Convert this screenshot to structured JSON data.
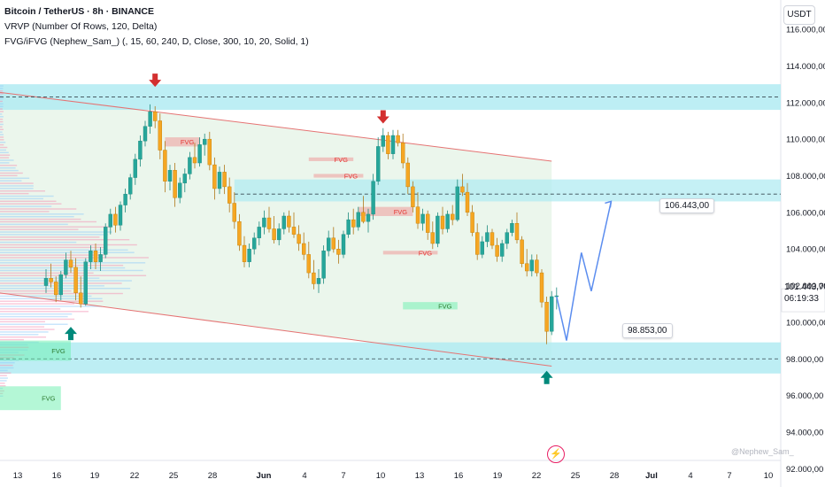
{
  "header": {
    "title": "Bitcoin / TetherUS · 8h · BINANCE",
    "indicator1": "VRVP (Number Of Rows, 120, Delta)",
    "indicator2": "FVG/iFVG (Nephew_Sam_) (, 15, 60, 240, D, Close, 300, 10, 20, Solid, 1)"
  },
  "currency_label": "USDT",
  "current_price": {
    "value": "101.443,70",
    "countdown": "06:19:33"
  },
  "watermark": "@Nephew_Sam_",
  "event_icon": "lightning-bolt-icon",
  "annotations": {
    "target_label": "106.443,00",
    "low_label": "98.853,00",
    "fvg_label": "FVG"
  },
  "colors": {
    "bull": "#26a69a",
    "bear": "#f5a623",
    "channel_line": "#e57373",
    "channel_fill": "#e8f5e9",
    "zone_cyan": "#b2ebf2",
    "arrow_down": "#d32f2f",
    "arrow_up": "#00897b",
    "projection": "#5b8def"
  },
  "chart_data": {
    "type": "candlestick",
    "symbol": "Bitcoin / TetherUS",
    "interval": "8h",
    "exchange": "BINANCE",
    "x_ticks": [
      "13",
      "16",
      "19",
      "22",
      "25",
      "28",
      "Jun",
      "4",
      "7",
      "10",
      "13",
      "16",
      "19",
      "22",
      "25",
      "28",
      "Jul",
      "4",
      "7",
      "10"
    ],
    "y_ticks": [
      "92.000,00",
      "94.000,00",
      "96.000,00",
      "98.000,00",
      "100.000,00",
      "102.000,00",
      "104.000,00",
      "106.000,00",
      "108.000,00",
      "110.000,00",
      "112.000,00",
      "114.000,00",
      "116.000,00"
    ],
    "ylim": [
      91000,
      117600
    ],
    "candles": [
      [
        102000,
        102900,
        101600,
        102400
      ],
      [
        102400,
        103200,
        101900,
        102200
      ],
      [
        102200,
        102500,
        101100,
        101500
      ],
      [
        101500,
        102800,
        101200,
        102600
      ],
      [
        102600,
        103800,
        102400,
        103400
      ],
      [
        103400,
        103900,
        102700,
        103000
      ],
      [
        103000,
        103500,
        101200,
        101600
      ],
      [
        101600,
        102500,
        100800,
        101000
      ],
      [
        101000,
        103500,
        100900,
        103300
      ],
      [
        103300,
        104200,
        102900,
        103900
      ],
      [
        103900,
        104300,
        102900,
        103300
      ],
      [
        103300,
        104100,
        102800,
        103700
      ],
      [
        103700,
        105400,
        103500,
        105200
      ],
      [
        105200,
        106200,
        104800,
        105900
      ],
      [
        105900,
        106300,
        104900,
        105300
      ],
      [
        105300,
        106600,
        105000,
        106400
      ],
      [
        106400,
        107300,
        106000,
        107000
      ],
      [
        107000,
        108100,
        106700,
        107900
      ],
      [
        107900,
        109200,
        107500,
        108900
      ],
      [
        108900,
        110200,
        108500,
        109900
      ],
      [
        109900,
        111000,
        109600,
        110700
      ],
      [
        110700,
        111900,
        110300,
        111500
      ],
      [
        111500,
        111800,
        110600,
        111000
      ],
      [
        111000,
        111400,
        108900,
        109400
      ],
      [
        109400,
        109900,
        107100,
        107700
      ],
      [
        107700,
        108600,
        107200,
        108300
      ],
      [
        108300,
        108700,
        106300,
        106800
      ],
      [
        106800,
        107900,
        106500,
        107600
      ],
      [
        107600,
        108400,
        107100,
        108100
      ],
      [
        108100,
        109300,
        107800,
        109000
      ],
      [
        109000,
        109800,
        108400,
        108700
      ],
      [
        108700,
        110100,
        108500,
        109700
      ],
      [
        109700,
        110300,
        109100,
        110000
      ],
      [
        110000,
        110400,
        108300,
        108600
      ],
      [
        108600,
        109000,
        106700,
        107300
      ],
      [
        107300,
        108500,
        107000,
        108200
      ],
      [
        108200,
        108600,
        107000,
        107400
      ],
      [
        107400,
        107900,
        106000,
        106500
      ],
      [
        106500,
        107100,
        105100,
        105500
      ],
      [
        105500,
        105900,
        103900,
        104200
      ],
      [
        104200,
        104700,
        103000,
        103300
      ],
      [
        103300,
        104300,
        103000,
        104000
      ],
      [
        104000,
        104900,
        103700,
        104600
      ],
      [
        104600,
        105500,
        104200,
        105200
      ],
      [
        105200,
        106100,
        104800,
        105700
      ],
      [
        105700,
        106300,
        104900,
        105100
      ],
      [
        105100,
        105800,
        104300,
        104500
      ],
      [
        104500,
        105400,
        104200,
        105100
      ],
      [
        105100,
        106000,
        104800,
        105800
      ],
      [
        105800,
        106100,
        104900,
        105200
      ],
      [
        105200,
        106000,
        104600,
        104800
      ],
      [
        104800,
        105300,
        103900,
        104300
      ],
      [
        104300,
        104900,
        103400,
        103700
      ],
      [
        103700,
        104400,
        102400,
        102700
      ],
      [
        102700,
        103400,
        101800,
        102100
      ],
      [
        102100,
        102900,
        101600,
        102400
      ],
      [
        102400,
        104200,
        102100,
        103900
      ],
      [
        103900,
        105000,
        103600,
        104600
      ],
      [
        104600,
        105200,
        103800,
        104000
      ],
      [
        104000,
        104500,
        103200,
        103700
      ],
      [
        103700,
        105000,
        103500,
        104800
      ],
      [
        104800,
        106000,
        104600,
        105600
      ],
      [
        105600,
        106200,
        104800,
        105200
      ],
      [
        105200,
        106300,
        105000,
        106000
      ],
      [
        106000,
        106900,
        105400,
        105500
      ],
      [
        105500,
        106200,
        104900,
        105900
      ],
      [
        105900,
        108100,
        105600,
        107700
      ],
      [
        107700,
        110100,
        107500,
        109600
      ],
      [
        109600,
        110600,
        109300,
        110200
      ],
      [
        110200,
        110400,
        108900,
        109200
      ],
      [
        109200,
        110500,
        108900,
        110200
      ],
      [
        110200,
        110500,
        109600,
        109800
      ],
      [
        109800,
        110300,
        108400,
        108700
      ],
      [
        108700,
        109000,
        107000,
        107400
      ],
      [
        107400,
        107700,
        106000,
        106300
      ],
      [
        106300,
        107100,
        105100,
        105400
      ],
      [
        105400,
        106200,
        105000,
        105900
      ],
      [
        105900,
        106100,
        104500,
        104900
      ],
      [
        104900,
        105500,
        104000,
        104300
      ],
      [
        104300,
        106000,
        104100,
        105800
      ],
      [
        105800,
        106300,
        104800,
        105100
      ],
      [
        105100,
        106100,
        104900,
        105900
      ],
      [
        105900,
        106400,
        105300,
        105600
      ],
      [
        105600,
        107800,
        105500,
        107400
      ],
      [
        107400,
        108100,
        106900,
        107100
      ],
      [
        107100,
        107600,
        105800,
        106000
      ],
      [
        106000,
        106400,
        104700,
        104900
      ],
      [
        104900,
        105400,
        103400,
        103700
      ],
      [
        103700,
        104700,
        103500,
        104400
      ],
      [
        104400,
        105300,
        104100,
        104900
      ],
      [
        104900,
        105100,
        104000,
        104200
      ],
      [
        104200,
        104600,
        103300,
        103600
      ],
      [
        103600,
        104500,
        103300,
        104300
      ],
      [
        104300,
        105100,
        104000,
        104900
      ],
      [
        104900,
        105600,
        104700,
        105400
      ],
      [
        105400,
        106000,
        104300,
        104500
      ],
      [
        104500,
        104700,
        103000,
        103200
      ],
      [
        103200,
        104000,
        102500,
        102800
      ],
      [
        102800,
        103700,
        102500,
        103400
      ],
      [
        103400,
        103700,
        102500,
        102700
      ],
      [
        102700,
        102900,
        100800,
        101100
      ],
      [
        101100,
        101400,
        98800,
        99500
      ],
      [
        99500,
        101700,
        99300,
        101400
      ],
      [
        101400,
        101900,
        100700,
        101443.7
      ]
    ],
    "channel": {
      "upper": [
        [
          0,
          112300
        ],
        [
          102,
          108800
        ]
      ],
      "lower": [
        [
          0,
          101400
        ],
        [
          102,
          97600
        ]
      ]
    },
    "horizontal_lines": [
      112300,
      98000,
      107000
    ],
    "zones": [
      {
        "kind": "resistance",
        "range": [
          111600,
          113000
        ],
        "from": 0,
        "to": 102
      },
      {
        "kind": "support",
        "range": [
          97200,
          98900
        ],
        "from": 0,
        "to": 102
      },
      {
        "kind": "mid",
        "range": [
          106600,
          107800
        ],
        "from": 38,
        "to": 102
      }
    ],
    "fvg_boxes": [
      {
        "label": "FVG",
        "range": [
          109600,
          110100
        ],
        "from": 24,
        "to": 31,
        "type": "bearish"
      },
      {
        "label": "FVG",
        "range": [
          108800,
          109000
        ],
        "from": 53,
        "to": 62,
        "type": "bearish"
      },
      {
        "label": "FVG",
        "range": [
          107900,
          108100
        ],
        "from": 54,
        "to": 64,
        "type": "bearish"
      },
      {
        "label": "FVG",
        "range": [
          105800,
          106300
        ],
        "from": 63,
        "to": 74,
        "type": "bearish"
      },
      {
        "label": "FVG",
        "range": [
          103700,
          103900
        ],
        "from": 68,
        "to": 79,
        "type": "bearish"
      },
      {
        "label": "FVG",
        "range": [
          100700,
          101100
        ],
        "from": 72,
        "to": 83,
        "type": "bullish"
      },
      {
        "label": "FVG",
        "range": [
          97900,
          99000
        ],
        "from": -1,
        "to": 5,
        "type": "bullish"
      },
      {
        "label": "FVG",
        "range": [
          95200,
          96500
        ],
        "from": -1,
        "to": 3,
        "type": "bullish"
      }
    ],
    "projection": [
      [
        103,
        101400
      ],
      [
        105,
        99000
      ],
      [
        108,
        103800
      ],
      [
        110,
        101700
      ],
      [
        114,
        106600
      ]
    ],
    "arrows": [
      {
        "dir": "down",
        "index": 22,
        "price": 112900
      },
      {
        "dir": "down",
        "index": 68,
        "price": 110900
      },
      {
        "dir": "up",
        "index": 5,
        "price": 99700
      },
      {
        "dir": "up",
        "index": 101,
        "price": 97300
      }
    ],
    "volume_profile": true
  }
}
